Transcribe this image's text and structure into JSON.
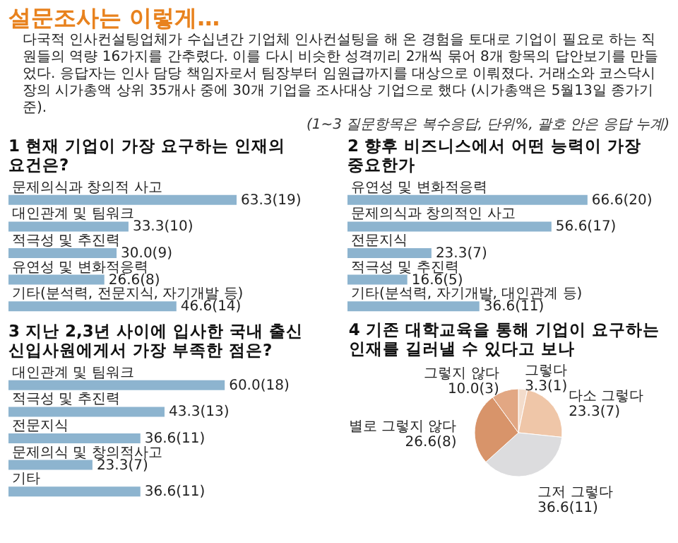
{
  "chart_data": [
    {
      "type": "other",
      "title": "설문조사는 이렇게…",
      "annotations": [
        "다국적 인사컨설팅업체가 수십년간 기업체 인사컨설팅을 해 온 경험을 토대로 기업이 필요로 하는 직원들의 역량 16가지를 간추렸다. 이를 다시 비슷한 성격끼리 2개씩 묶어 8개 항목의 답안보기를 만들었다. 응답자는 인사 담당 책임자로서 팀장부터 임원급까지를 대상으로 이뤄졌다. 거래소와 코스닥시장의 시가총액 상위 35개사 중에 30개 기업을 조사대상 기업으로 했다 (시가총액은 5월13일 종가기준).",
        "(1~3 질문항목은 복수응답,   단위%,   괄호 안은 응답 누계)"
      ]
    },
    {
      "type": "bar",
      "orientation": "horizontal",
      "title": "1 현재 기업이 가장 요구하는 인재의 요건은?",
      "categories": [
        "문제의식과 창의적 사고",
        "대인관계 및 팀워크",
        "적극성 및 추진력",
        "유연성 및 변화적응력",
        "기타(분석력, 전문지식, 자기개발 등)"
      ],
      "values": [
        63.3,
        33.3,
        30.0,
        26.6,
        46.6
      ],
      "value_labels": [
        "63.3(19)",
        "33.3(10)",
        "30.0(9)",
        "26.6(8)",
        "46.6(14)"
      ],
      "color": "#8db4cf"
    },
    {
      "type": "bar",
      "orientation": "horizontal",
      "title": "2 향후 비즈니스에서 어떤 능력이 가장 중요한가",
      "categories": [
        "유연성 및 변화적응력",
        "문제의식과 창의적인 사고",
        "전문지식",
        "적극성 및 추진력",
        "기타(분석력, 자기개발, 대인관계 등)"
      ],
      "values": [
        66.6,
        56.6,
        23.3,
        16.6,
        36.6
      ],
      "value_labels": [
        "66.6(20)",
        "56.6(17)",
        "23.3(7)",
        "16.6(5)",
        "36.6(11)"
      ],
      "color": "#8db4cf"
    },
    {
      "type": "bar",
      "orientation": "horizontal",
      "title": "3 지난 2,3년 사이에 입사한 국내 출신 신입사원에게서 가장 부족한 점은?",
      "categories": [
        "대인관계 및 팀워크",
        "적극성 및 추진력",
        "전문지식",
        "문제의식 및 창의적사고",
        "기타"
      ],
      "values": [
        60.0,
        43.3,
        36.6,
        23.3,
        36.6
      ],
      "value_labels": [
        "60.0(18)",
        "43.3(13)",
        "36.6(11)",
        "23.3(7)",
        "36.6(11)"
      ],
      "color": "#8db4cf"
    },
    {
      "type": "pie",
      "title": "4 기존 대학교육을 통해 기업이 요구하는 인재를 길러낼 수 있다고 보나",
      "categories": [
        "그렇다",
        "다소 그렇다",
        "그저 그렇다",
        "별로 그렇지 않다",
        "그렇지 않다"
      ],
      "values": [
        3.3,
        23.3,
        36.6,
        26.6,
        10.0
      ],
      "value_labels": [
        "3.3(1)",
        "23.3(7)",
        "36.6(11)",
        "26.6(8)",
        "10.0(3)"
      ],
      "colors": [
        "#f3dccb",
        "#efc6a8",
        "#dcdcde",
        "#d8946a",
        "#e2a783"
      ]
    }
  ]
}
